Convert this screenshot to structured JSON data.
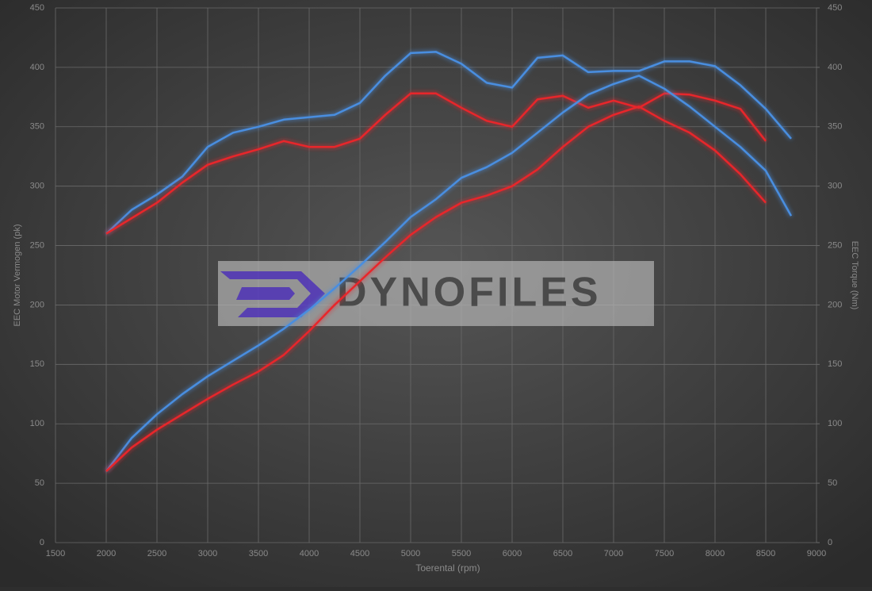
{
  "chart_data": {
    "type": "line",
    "x_label": "Toerental (rpm)",
    "y_label": "EEC Motor Vermogen (pk)",
    "y2_label": "EEC Torque (Nm)",
    "watermark": "DYNOFILES",
    "x": [
      2000,
      2250,
      2500,
      2750,
      3000,
      3250,
      3500,
      3750,
      4000,
      4250,
      4500,
      4750,
      5000,
      5250,
      5500,
      5750,
      6000,
      6250,
      6500,
      6750,
      7000,
      7250,
      7500,
      7750,
      8000,
      8250,
      8500,
      8750
    ],
    "series": [
      {
        "color": "#4a8ee0",
        "axis": "y2",
        "values": [
          260,
          280,
          293,
          308,
          333,
          345,
          350,
          356,
          358,
          360,
          370,
          393,
          412,
          413,
          403,
          387,
          383,
          408,
          410,
          396,
          397,
          397,
          405,
          405,
          401,
          385,
          365,
          340
        ]
      },
      {
        "color": "#e8262c",
        "axis": "y2",
        "values": [
          260,
          273,
          286,
          303,
          318,
          325,
          331,
          338,
          333,
          333,
          340,
          360,
          378,
          378,
          366,
          355,
          350,
          373,
          376,
          366,
          372,
          366,
          378,
          377,
          372,
          365,
          338,
          null
        ]
      },
      {
        "color": "#4a8ee0",
        "values": [
          60,
          88,
          108,
          125,
          140,
          153,
          166,
          180,
          196,
          214,
          233,
          253,
          274,
          289,
          307,
          316,
          328,
          345,
          362,
          377,
          386,
          393,
          382,
          367,
          350,
          333,
          313,
          275
        ]
      },
      {
        "color": "#e8262c",
        "values": [
          60,
          80,
          95,
          108,
          121,
          133,
          144,
          158,
          178,
          200,
          220,
          240,
          259,
          274,
          286,
          292,
          300,
          314,
          333,
          350,
          360,
          367,
          355,
          345,
          330,
          310,
          286,
          null
        ]
      }
    ],
    "xlim": [
      1500,
      9000
    ],
    "xticks": [
      1500,
      2000,
      2500,
      3000,
      3500,
      4000,
      4500,
      5000,
      5500,
      6000,
      6500,
      7000,
      7500,
      8000,
      8500,
      9000
    ],
    "ylim": [
      0,
      450
    ],
    "yticks": [
      0,
      50,
      100,
      150,
      200,
      250,
      300,
      350,
      400,
      450
    ],
    "y2lim": [
      0,
      450
    ],
    "y2ticks": [
      0,
      50,
      100,
      150,
      200,
      250,
      300,
      350,
      400,
      450
    ],
    "grid": true
  }
}
